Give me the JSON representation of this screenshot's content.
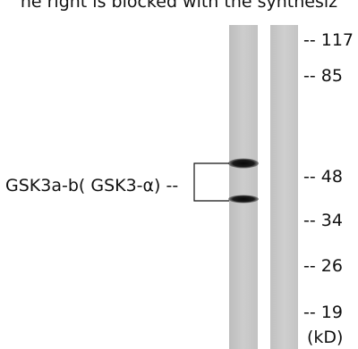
{
  "caption_top": "he right is blocked with the synthesiz",
  "target_label": "GSK3a-b( GSK3-α) --",
  "mw_markers": [
    "-- 117",
    "-- 85",
    "-- 48",
    "-- 34",
    "-- 26",
    "-- 19"
  ],
  "unit_label": "(kD)",
  "colors": {
    "background": "#ffffff",
    "lane": "#c6c6c6",
    "band": "#0d0d0d",
    "text": "#111111"
  }
}
